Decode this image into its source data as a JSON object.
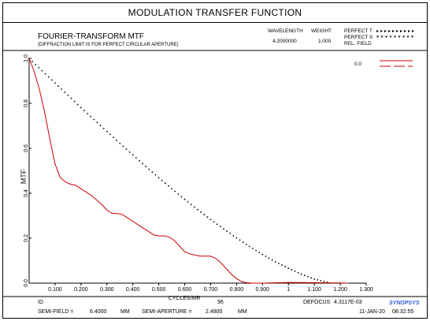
{
  "header": {
    "title": "MODULATION TRANSFER FUNCTION"
  },
  "plot_heading": {
    "line1": "FOURIER-TRANSFORM MTF",
    "line2": "(DIFFRACTION LIMIT IS FOR PERFECT CIRCULAR APERTURE)"
  },
  "wavelength_table": {
    "col1_header": "WAVELENGTH",
    "col2_header": "WEIGHT",
    "wavelength": "4.2000000",
    "weight": "1.000"
  },
  "legend_box": {
    "perfect_t": "PERFECT T",
    "perfect_s": "PERFECT S",
    "rel_field": "REL. FIELD",
    "field_value": "0.0"
  },
  "footer": {
    "id_label": "ID",
    "id_value": "96",
    "defocus_label": "DEFOCUS",
    "defocus_value": "4.3117E-03",
    "semi_field_label": "SEMI-FIELD =",
    "semi_field_value": "6.4000",
    "semi_field_unit": "MM",
    "semi_aperture_label": "SEMI-APERTURE =",
    "semi_aperture_value": "2.4800",
    "semi_aperture_unit": "MM",
    "date": "11-JAN-20",
    "time": "08:32:55",
    "logo": "SYNOPSYS"
  },
  "colors": {
    "series_red": "#cc0000",
    "ink": "#000000"
  },
  "chart_data": {
    "type": "line",
    "title": "",
    "xlabel": "CYCLES/MR",
    "ylabel": "MTF",
    "xlim": [
      0,
      1.3
    ],
    "ylim": [
      0,
      1.0
    ],
    "grid": false,
    "x_ticks": [
      "0.100",
      "0.200",
      "0.300",
      "0.400",
      "0.500",
      "0.600",
      "0.700",
      "0.800",
      "0.900",
      "1",
      "1.100",
      "1.200",
      "1.300"
    ],
    "x_tick_values": [
      0.1,
      0.2,
      0.3,
      0.4,
      0.5,
      0.6,
      0.7,
      0.8,
      0.9,
      1.0,
      1.1,
      1.2,
      1.3
    ],
    "y_ticks": [
      "0.0",
      "0.2",
      "0.4",
      "0.6",
      "0.8",
      "1.0"
    ],
    "y_tick_values": [
      0.0,
      0.2,
      0.4,
      0.6,
      0.8,
      1.0
    ],
    "series": [
      {
        "name": "PERFECT T",
        "style": "dotted",
        "x": [
          0,
          0.05,
          0.1,
          0.15,
          0.2,
          0.25,
          0.3,
          0.35,
          0.4,
          0.45,
          0.5,
          0.55,
          0.6,
          0.65,
          0.7,
          0.75,
          0.8,
          0.85,
          0.9,
          0.95,
          1.0,
          1.05,
          1.1,
          1.15
        ],
        "y": [
          1.0,
          0.945,
          0.89,
          0.836,
          0.781,
          0.728,
          0.675,
          0.622,
          0.57,
          0.519,
          0.469,
          0.42,
          0.373,
          0.327,
          0.283,
          0.241,
          0.201,
          0.163,
          0.128,
          0.095,
          0.066,
          0.04,
          0.018,
          0.004
        ]
      },
      {
        "name": "0.0",
        "style": "solid",
        "x": [
          0,
          0.02,
          0.04,
          0.06,
          0.08,
          0.1,
          0.12,
          0.14,
          0.16,
          0.18,
          0.2,
          0.22,
          0.24,
          0.26,
          0.28,
          0.3,
          0.32,
          0.34,
          0.36,
          0.38,
          0.4,
          0.42,
          0.44,
          0.46,
          0.48,
          0.5,
          0.52,
          0.54,
          0.56,
          0.58,
          0.6,
          0.62,
          0.64,
          0.66,
          0.68,
          0.7,
          0.72,
          0.74,
          0.76,
          0.78,
          0.8,
          0.82,
          0.84,
          0.86,
          0.9,
          1.0,
          1.1,
          1.2,
          1.23
        ],
        "y": [
          1.0,
          0.94,
          0.86,
          0.76,
          0.64,
          0.53,
          0.47,
          0.45,
          0.44,
          0.435,
          0.42,
          0.405,
          0.39,
          0.37,
          0.35,
          0.325,
          0.31,
          0.31,
          0.305,
          0.29,
          0.275,
          0.26,
          0.245,
          0.23,
          0.215,
          0.21,
          0.21,
          0.205,
          0.19,
          0.165,
          0.14,
          0.13,
          0.125,
          0.12,
          0.12,
          0.12,
          0.11,
          0.09,
          0.065,
          0.04,
          0.02,
          0.007,
          0.002,
          0.0,
          0.0,
          0.003,
          0.002,
          0.001,
          0.0
        ]
      }
    ]
  }
}
